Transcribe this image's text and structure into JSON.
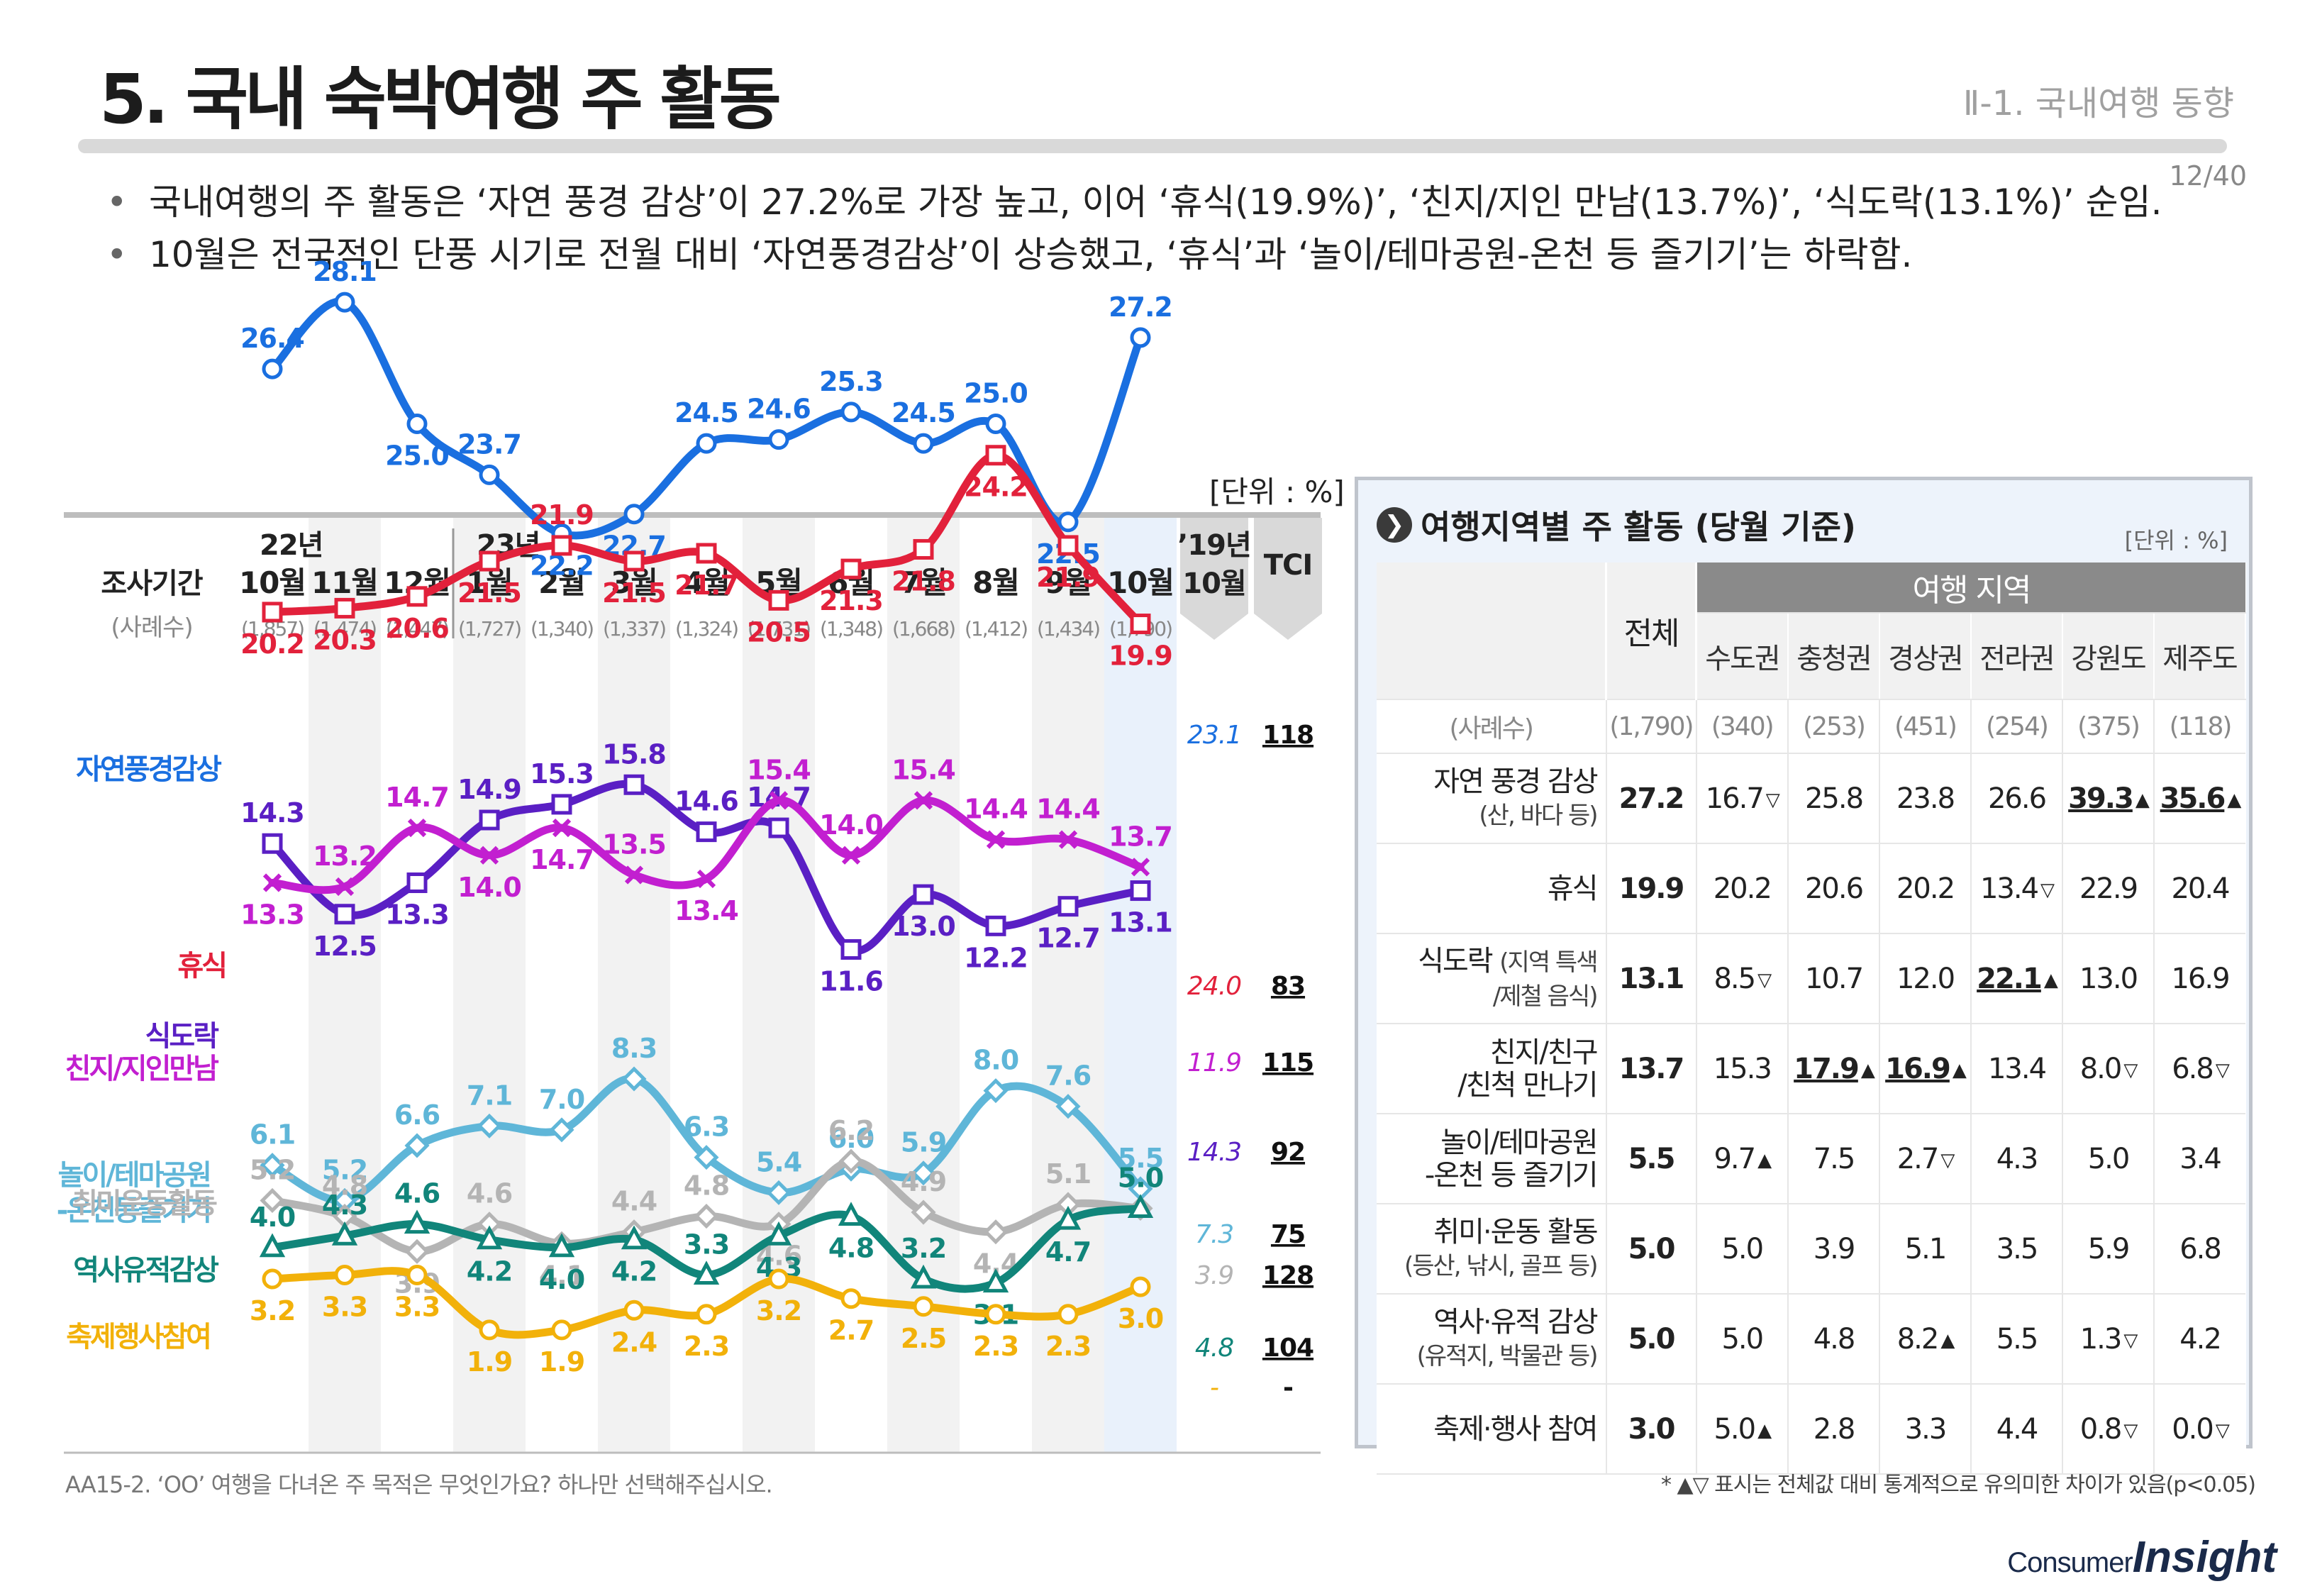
{
  "header": {
    "title": "5. 국내 숙박여행 주 활동",
    "section": "Ⅱ-1. 국내여행 동향",
    "page": "12/40"
  },
  "bullets": [
    "국내여행의 주 활동은 ‘자연 풍경 감상’이 27.2%로 가장 높고, 이어 ‘휴식(19.9%)’, ‘친지/지인 만남(13.7%)’, ‘식도락(13.1%)’ 순임.",
    "10월은 전국적인 단풍 시기로 전월 대비 ‘자연풍경감상’이 상승했고, ‘휴식’과 ‘놀이/테마공원-온천 등 즐기기’는 하락함."
  ],
  "chart_unit": "[단위 : %]",
  "chart_data": {
    "type": "line",
    "row_label_period": "조사기간",
    "row_label_n": "(사례수)",
    "year_labels": [
      "22년",
      "23년"
    ],
    "x": [
      "10월",
      "11월",
      "12월",
      "1월",
      "2월",
      "3월",
      "4월",
      "5월",
      "6월",
      "7월",
      "8월",
      "9월",
      "10월"
    ],
    "n": [
      "(1,857)",
      "(1,474)",
      "(1,447)",
      "(1,727)",
      "(1,340)",
      "(1,337)",
      "(1,324)",
      "(1,731)",
      "(1,348)",
      "(1,668)",
      "(1,412)",
      "(1,434)",
      "(1,790)"
    ],
    "compare_header": [
      "’19년",
      "10월"
    ],
    "tci_header": "TCI",
    "ylim": [
      0,
      30
    ],
    "series": [
      {
        "name": "자연풍경감상",
        "color": "#1a6fe0",
        "marker": "circle",
        "values": [
          26.4,
          28.1,
          25.0,
          23.7,
          22.2,
          22.7,
          24.5,
          24.6,
          25.3,
          24.5,
          25.0,
          22.5,
          27.2
        ],
        "compare": "23.1",
        "tci": "118"
      },
      {
        "name": "휴식",
        "color": "#e2213b",
        "marker": "square",
        "values": [
          20.2,
          20.3,
          20.6,
          21.5,
          21.9,
          21.5,
          21.7,
          20.5,
          21.3,
          21.8,
          24.2,
          21.9,
          19.9
        ],
        "compare": "24.0",
        "tci": "83"
      },
      {
        "name": "식도락",
        "color": "#5a1fc4",
        "marker": "square",
        "values": [
          14.3,
          12.5,
          13.3,
          14.9,
          15.3,
          15.8,
          14.6,
          14.7,
          11.6,
          13.0,
          12.2,
          12.7,
          13.1
        ],
        "compare": "14.3",
        "tci": "92"
      },
      {
        "name": "친지/지인만남",
        "color": "#c21fd0",
        "marker": "x",
        "values": [
          13.3,
          13.2,
          14.7,
          14.0,
          14.7,
          13.5,
          13.4,
          15.4,
          14.0,
          15.4,
          14.4,
          14.4,
          13.7
        ],
        "compare": "11.9",
        "tci": "115"
      },
      {
        "name": "놀이/테마공원-온천등즐기기",
        "color": "#5fb6d8",
        "marker": "diamond",
        "values": [
          6.1,
          5.2,
          6.6,
          7.1,
          7.0,
          8.3,
          6.3,
          5.4,
          6.0,
          5.9,
          8.0,
          7.6,
          5.5
        ],
        "compare": "7.3",
        "tci": "75"
      },
      {
        "name": "취미운동활동",
        "color": "#b4b4b4",
        "marker": "diamond",
        "values": [
          5.2,
          4.8,
          3.9,
          4.6,
          4.1,
          4.4,
          4.8,
          4.6,
          6.2,
          4.9,
          4.4,
          5.1,
          5.0
        ],
        "compare": "3.9",
        "tci": "128"
      },
      {
        "name": "역사유적감상",
        "color": "#11857a",
        "marker": "triangle",
        "values": [
          4.0,
          4.3,
          4.6,
          4.2,
          4.0,
          4.2,
          3.3,
          4.3,
          4.8,
          3.2,
          3.1,
          4.7,
          5.0
        ],
        "compare": "4.8",
        "tci": "104"
      },
      {
        "name": "축제행사참여",
        "color": "#f2b10a",
        "marker": "circle",
        "values": [
          3.2,
          3.3,
          3.3,
          1.9,
          1.9,
          2.4,
          2.3,
          3.2,
          2.7,
          2.5,
          2.3,
          2.3,
          3.0
        ],
        "compare": "-",
        "tci": "-"
      }
    ]
  },
  "region_table": {
    "title": "여행지역별 주 활동 (당월 기준)",
    "unit": "[단위 : %]",
    "total_header": "전체",
    "region_header": "여행 지역",
    "regions": [
      "수도권",
      "충청권",
      "경상권",
      "전라권",
      "강원도",
      "제주도"
    ],
    "n_label": "(사례수)",
    "n_values": [
      "(1,790)",
      "(340)",
      "(253)",
      "(451)",
      "(254)",
      "(375)",
      "(118)"
    ],
    "rows": [
      {
        "label": "자연 풍경 감상",
        "sub": "(산, 바다 등)",
        "total": "27.2",
        "cells": [
          {
            "v": "16.7",
            "m": "▽"
          },
          {
            "v": "25.8"
          },
          {
            "v": "23.8"
          },
          {
            "v": "26.6"
          },
          {
            "v": "39.3",
            "m": "▲",
            "u": true
          },
          {
            "v": "35.6",
            "m": "▲",
            "u": true
          }
        ]
      },
      {
        "label": "휴식",
        "sub": "",
        "total": "19.9",
        "cells": [
          {
            "v": "20.2"
          },
          {
            "v": "20.6"
          },
          {
            "v": "20.2"
          },
          {
            "v": "13.4",
            "m": "▽"
          },
          {
            "v": "22.9"
          },
          {
            "v": "20.4"
          }
        ]
      },
      {
        "label": "식도락",
        "sub": "(지역 특색 /제철 음식)",
        "total": "13.1",
        "cells": [
          {
            "v": "8.5",
            "m": "▽"
          },
          {
            "v": "10.7"
          },
          {
            "v": "12.0"
          },
          {
            "v": "22.1",
            "m": "▲",
            "u": true
          },
          {
            "v": "13.0"
          },
          {
            "v": "16.9"
          }
        ]
      },
      {
        "label": "친지/친구 /친척 만나기",
        "sub": "",
        "total": "13.7",
        "cells": [
          {
            "v": "15.3"
          },
          {
            "v": "17.9",
            "m": "▲",
            "u": true
          },
          {
            "v": "16.9",
            "m": "▲",
            "u": true
          },
          {
            "v": "13.4"
          },
          {
            "v": "8.0",
            "m": "▽"
          },
          {
            "v": "6.8",
            "m": "▽"
          }
        ]
      },
      {
        "label": "놀이/테마공원 -온천 등 즐기기",
        "sub": "",
        "total": "5.5",
        "cells": [
          {
            "v": "9.7",
            "m": "▲"
          },
          {
            "v": "7.5"
          },
          {
            "v": "2.7",
            "m": "▽"
          },
          {
            "v": "4.3"
          },
          {
            "v": "5.0"
          },
          {
            "v": "3.4"
          }
        ]
      },
      {
        "label": "취미·운동 활동",
        "sub": "(등산, 낚시, 골프 등)",
        "total": "5.0",
        "cells": [
          {
            "v": "5.0"
          },
          {
            "v": "3.9"
          },
          {
            "v": "5.1"
          },
          {
            "v": "3.5"
          },
          {
            "v": "5.9"
          },
          {
            "v": "6.8"
          }
        ]
      },
      {
        "label": "역사·유적 감상",
        "sub": "(유적지, 박물관 등)",
        "total": "5.0",
        "cells": [
          {
            "v": "5.0"
          },
          {
            "v": "4.8"
          },
          {
            "v": "8.2",
            "m": "▲"
          },
          {
            "v": "5.5"
          },
          {
            "v": "1.3",
            "m": "▽"
          },
          {
            "v": "4.2"
          }
        ]
      },
      {
        "label": "축제·행사 참여",
        "sub": "",
        "total": "3.0",
        "cells": [
          {
            "v": "5.0",
            "m": "▲"
          },
          {
            "v": "2.8"
          },
          {
            "v": "3.3"
          },
          {
            "v": "4.4"
          },
          {
            "v": "0.8",
            "m": "▽"
          },
          {
            "v": "0.0",
            "m": "▽"
          }
        ]
      }
    ]
  },
  "footnote_left": "AA15-2. ‘OO’ 여행을 다녀온 주 목적은 무엇인가요? 하나만 선택해주십시오.",
  "footnote_right": "* ▲▽ 표시는 전체값 대비 통계적으로 유의미한 차이가 있음(p<0.05)",
  "logo": {
    "text1": "Consumer",
    "text2": "Insight"
  }
}
